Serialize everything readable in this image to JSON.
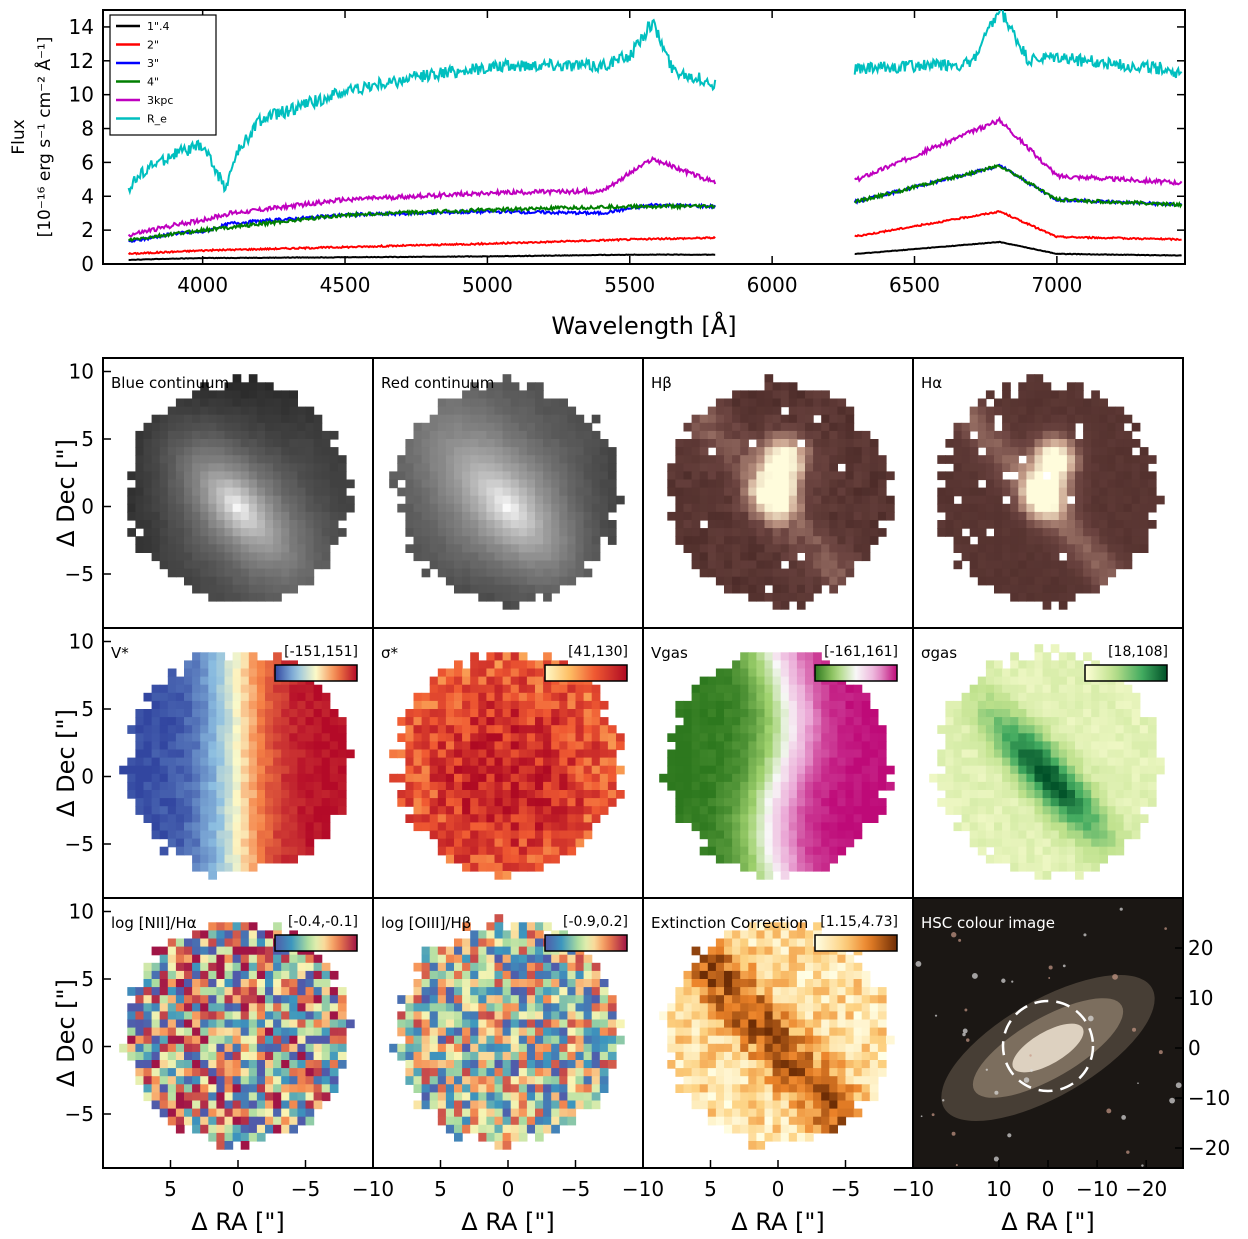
{
  "chart_data": [
    {
      "type": "line",
      "title": "",
      "xlabel": "Wavelength [Å]",
      "ylabel_line1": "Flux",
      "ylabel_line2": "[10⁻¹⁶ erg s⁻¹ cm⁻² Å⁻¹]",
      "xlim": [
        3650,
        7450
      ],
      "ylim": [
        0,
        15
      ],
      "xticks": [
        4000,
        4500,
        5000,
        5500,
        6000,
        6500,
        7000
      ],
      "yticks": [
        0,
        2,
        4,
        6,
        8,
        10,
        12,
        14
      ],
      "segments": [
        [
          3740,
          5800
        ],
        [
          6290,
          7440
        ]
      ],
      "legend_position": "top-left",
      "series": [
        {
          "name": "1\".4",
          "color": "#000000",
          "x": [
            3740,
            4000,
            4500,
            5000,
            5500,
            5800,
            6300,
            6800,
            7000,
            7440
          ],
          "y": [
            0.25,
            0.35,
            0.4,
            0.45,
            0.55,
            0.55,
            0.6,
            1.3,
            0.6,
            0.5
          ]
        },
        {
          "name": "2\"",
          "color": "#ff0000",
          "x": [
            3740,
            4000,
            4500,
            5000,
            5500,
            5800,
            6300,
            6800,
            7000,
            7440
          ],
          "y": [
            0.6,
            0.8,
            1.0,
            1.2,
            1.45,
            1.55,
            1.65,
            3.1,
            1.6,
            1.45
          ]
        },
        {
          "name": "3\"",
          "color": "#0000ff",
          "x": [
            3740,
            3900,
            4000,
            4100,
            4500,
            5000,
            5400,
            5580,
            5800,
            6300,
            6800,
            7000,
            7440
          ],
          "y": [
            1.3,
            1.8,
            1.9,
            2.4,
            2.9,
            3.1,
            3.0,
            3.5,
            3.4,
            3.7,
            5.8,
            3.8,
            3.5
          ]
        },
        {
          "name": "4\"",
          "color": "#007f00",
          "x": [
            3740,
            4000,
            4500,
            5000,
            5500,
            5800,
            6300,
            6800,
            7000,
            7440
          ],
          "y": [
            1.4,
            2.0,
            2.9,
            3.2,
            3.4,
            3.4,
            3.7,
            5.8,
            3.8,
            3.5
          ]
        },
        {
          "name": "3kpc",
          "color": "#bf00bf",
          "x": [
            3740,
            3900,
            4000,
            4100,
            4500,
            5000,
            5400,
            5580,
            5800,
            6300,
            6800,
            7000,
            7440
          ],
          "y": [
            1.7,
            2.3,
            2.6,
            3.0,
            3.8,
            4.2,
            4.3,
            6.2,
            4.8,
            5.0,
            8.5,
            5.2,
            4.8
          ]
        },
        {
          "name": "R_e",
          "color": "#00bfbf",
          "x": [
            3740,
            3800,
            3900,
            4000,
            4080,
            4120,
            4200,
            4500,
            4800,
            5000,
            5200,
            5400,
            5500,
            5580,
            5650,
            5800,
            6300,
            6500,
            6700,
            6800,
            6900,
            7000,
            7200,
            7400,
            7440
          ],
          "y": [
            4.5,
            5.6,
            6.5,
            7.0,
            4.5,
            6.5,
            8.5,
            10.2,
            11.2,
            11.6,
            11.8,
            11.7,
            12.3,
            14.3,
            11.5,
            10.6,
            11.5,
            11.7,
            11.8,
            15.0,
            12.0,
            12.2,
            11.8,
            11.5,
            11.0
          ]
        }
      ]
    },
    {
      "type": "heatmap",
      "xlabel": "Δ RA [\"]",
      "ylabel": "Δ Dec [\"]",
      "xlim": [
        10,
        -10
      ],
      "ylim": [
        -9,
        11
      ],
      "xticks": [
        5,
        0,
        -5,
        -10
      ],
      "yticks": [
        -5,
        0,
        5,
        10
      ],
      "hsc_xticks": [
        10,
        0,
        -10,
        -20
      ],
      "hsc_yticks": [
        -20,
        -10,
        0,
        10,
        20
      ],
      "panels": [
        {
          "label": "Blue continuum",
          "range": "",
          "cmap": "gray",
          "pattern": "continuum",
          "seed": 11
        },
        {
          "label": "Red continuum",
          "range": "",
          "cmap": "gray",
          "pattern": "continuum_red",
          "seed": 12
        },
        {
          "label": "Hβ",
          "range": "",
          "cmap": "pink",
          "pattern": "hbeta",
          "seed": 13
        },
        {
          "label": "Hα",
          "range": "",
          "cmap": "pink",
          "pattern": "halpha",
          "seed": 14
        },
        {
          "label": "V*",
          "range": "[-151,151]",
          "cmap": "RdYlBu_r",
          "pattern": "velocity",
          "seed": 21
        },
        {
          "label": "σ*",
          "range": "[41,130]",
          "cmap": "YlOrRd",
          "pattern": "dispersion",
          "seed": 22
        },
        {
          "label": "Vgas",
          "range": "[-161,161]",
          "cmap": "PiYG_r",
          "pattern": "gasvelocity",
          "seed": 23
        },
        {
          "label": "σgas",
          "range": "[18,108]",
          "cmap": "YlGn",
          "pattern": "gasdispersion",
          "seed": 24
        },
        {
          "label": "log [NII]/Hα",
          "range": "[-0.4,-0.1]",
          "cmap": "Spectral_r",
          "pattern": "noisy",
          "seed": 31
        },
        {
          "label": "log [OIII]/Hβ",
          "range": "[-0.9,0.2]",
          "cmap": "Spectral_r",
          "pattern": "noisy2",
          "seed": 32
        },
        {
          "label": "Extinction Correction",
          "range": "[1.15,4.73]",
          "cmap": "YlOrBr",
          "pattern": "extinction",
          "seed": 33
        },
        {
          "label": "HSC colour image",
          "range": "",
          "cmap": "image",
          "pattern": "hsc",
          "seed": 34
        }
      ]
    }
  ]
}
